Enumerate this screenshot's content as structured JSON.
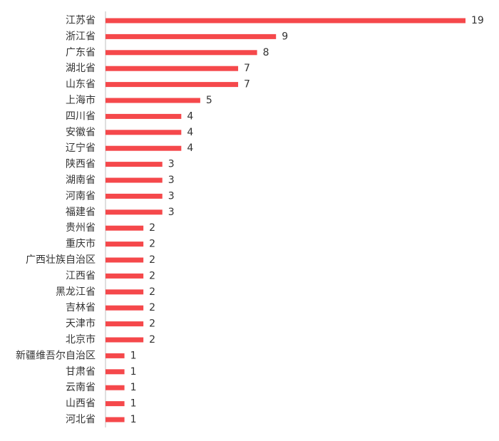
{
  "chart_data": {
    "type": "bar",
    "orientation": "horizontal",
    "categories": [
      "江苏省",
      "浙江省",
      "广东省",
      "湖北省",
      "山东省",
      "上海市",
      "四川省",
      "安徽省",
      "辽宁省",
      "陕西省",
      "湖南省",
      "河南省",
      "福建省",
      "贵州省",
      "重庆市",
      "广西壮族自治区",
      "江西省",
      "黑龙江省",
      "吉林省",
      "天津市",
      "北京市",
      "新疆维吾尔自治区",
      "甘肃省",
      "云南省",
      "山西省",
      "河北省"
    ],
    "values": [
      19,
      9,
      8,
      7,
      7,
      5,
      4,
      4,
      4,
      3,
      3,
      3,
      3,
      2,
      2,
      2,
      2,
      2,
      2,
      2,
      2,
      1,
      1,
      1,
      1,
      1
    ],
    "title": "",
    "xlabel": "",
    "ylabel": "",
    "xlim": [
      0,
      19
    ],
    "grid": false,
    "legend": "none",
    "bar_color": "#F5484B",
    "axis_color": "#BFBFBF",
    "text_color": "#333333"
  }
}
